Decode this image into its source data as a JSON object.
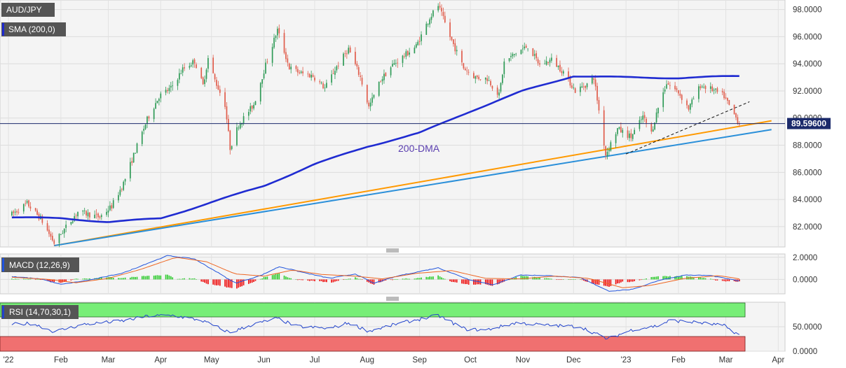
{
  "chart_data": [
    {
      "type": "candlestick",
      "panel": "price",
      "symbol_label": "AUD/JPY",
      "indicator_label": "SMA (200,0)",
      "annotation": "200-DMA",
      "current_price_label": "89.59600",
      "current_price": 89.596,
      "ylim": [
        80.5,
        98.7
      ],
      "y_ticks": [
        "82.0000",
        "84.0000",
        "86.0000",
        "88.0000",
        "90.0000",
        "92.0000",
        "94.0000",
        "96.0000",
        "98.0000"
      ],
      "y_tick_values": [
        82,
        84,
        86,
        88,
        90,
        92,
        94,
        96,
        98
      ],
      "x_labels": [
        "'22",
        "Feb",
        "Mar",
        "Apr",
        "May",
        "Jun",
        "Jul",
        "Aug",
        "Sep",
        "Oct",
        "Nov",
        "Dec",
        "'23",
        "Feb",
        "Mar",
        "Apr"
      ],
      "price_anchors": [
        [
          "2022-01-03",
          82.9
        ],
        [
          "2022-01-12",
          83.7
        ],
        [
          "2022-01-20",
          82.6
        ],
        [
          "2022-01-28",
          80.8
        ],
        [
          "2022-02-03",
          81.8
        ],
        [
          "2022-02-11",
          83.1
        ],
        [
          "2022-02-24",
          82.7
        ],
        [
          "2022-03-03",
          83.5
        ],
        [
          "2022-03-10",
          85.2
        ],
        [
          "2022-03-17",
          87.6
        ],
        [
          "2022-03-24",
          89.9
        ],
        [
          "2022-03-31",
          91.6
        ],
        [
          "2022-04-07",
          92.2
        ],
        [
          "2022-04-14",
          93.6
        ],
        [
          "2022-04-21",
          94.2
        ],
        [
          "2022-04-26",
          92.4
        ],
        [
          "2022-04-29",
          94.4
        ],
        [
          "2022-05-03",
          92.8
        ],
        [
          "2022-05-09",
          91.0
        ],
        [
          "2022-05-12",
          87.8
        ],
        [
          "2022-05-17",
          89.5
        ],
        [
          "2022-05-26",
          91.0
        ],
        [
          "2022-06-02",
          93.9
        ],
        [
          "2022-06-09",
          96.5
        ],
        [
          "2022-06-16",
          93.7
        ],
        [
          "2022-06-23",
          93.3
        ],
        [
          "2022-06-30",
          93.1
        ],
        [
          "2022-07-07",
          92.2
        ],
        [
          "2022-07-14",
          93.8
        ],
        [
          "2022-07-21",
          95.1
        ],
        [
          "2022-07-28",
          93.0
        ],
        [
          "2022-08-02",
          90.8
        ],
        [
          "2022-08-09",
          92.8
        ],
        [
          "2022-08-16",
          93.9
        ],
        [
          "2022-08-23",
          94.6
        ],
        [
          "2022-08-30",
          95.3
        ],
        [
          "2022-09-07",
          97.4
        ],
        [
          "2022-09-12",
          98.3
        ],
        [
          "2022-09-19",
          96.0
        ],
        [
          "2022-09-27",
          93.7
        ],
        [
          "2022-10-04",
          93.0
        ],
        [
          "2022-10-11",
          92.9
        ],
        [
          "2022-10-18",
          91.7
        ],
        [
          "2022-10-21",
          94.1
        ],
        [
          "2022-10-28",
          94.8
        ],
        [
          "2022-11-04",
          95.3
        ],
        [
          "2022-11-11",
          93.9
        ],
        [
          "2022-11-18",
          94.3
        ],
        [
          "2022-11-25",
          93.4
        ],
        [
          "2022-12-02",
          92.0
        ],
        [
          "2022-12-09",
          92.5
        ],
        [
          "2022-12-13",
          93.0
        ],
        [
          "2022-12-20",
          87.3
        ],
        [
          "2022-12-27",
          89.2
        ],
        [
          "2023-01-04",
          88.6
        ],
        [
          "2023-01-11",
          90.1
        ],
        [
          "2023-01-16",
          88.9
        ],
        [
          "2023-01-20",
          90.8
        ],
        [
          "2023-01-25",
          92.6
        ],
        [
          "2023-02-01",
          91.9
        ],
        [
          "2023-02-07",
          90.7
        ],
        [
          "2023-02-14",
          92.4
        ],
        [
          "2023-02-21",
          92.1
        ],
        [
          "2023-02-28",
          91.6
        ],
        [
          "2023-03-03",
          90.9
        ],
        [
          "2023-03-09",
          89.6
        ]
      ],
      "sma200_anchors": [
        [
          "2022-01-03",
          82.7
        ],
        [
          "2022-02-01",
          82.6
        ],
        [
          "2022-03-01",
          82.35
        ],
        [
          "2022-04-01",
          82.6
        ],
        [
          "2022-05-01",
          83.8
        ],
        [
          "2022-06-01",
          85.0
        ],
        [
          "2022-07-01",
          86.6
        ],
        [
          "2022-08-01",
          87.9
        ],
        [
          "2022-09-01",
          88.9
        ],
        [
          "2022-10-01",
          90.5
        ],
        [
          "2022-11-01",
          92.0
        ],
        [
          "2022-12-01",
          93.1
        ],
        [
          "2023-01-01",
          93.0
        ],
        [
          "2023-02-01",
          92.95
        ],
        [
          "2023-03-09",
          93.1
        ]
      ],
      "trendlines": [
        {
          "name": "orange-support",
          "color": "#ff9900",
          "dash": false,
          "start": [
            "2022-01-28",
            80.6
          ],
          "end": [
            "2023-03-28",
            89.8
          ]
        },
        {
          "name": "blue-support",
          "color": "#2a8fd9",
          "dash": false,
          "start": [
            "2022-01-28",
            80.6
          ],
          "end": [
            "2023-03-28",
            89.15
          ]
        },
        {
          "name": "dashed-support",
          "color": "#111111",
          "dash": true,
          "start": [
            "2023-01-01",
            87.35
          ],
          "end": [
            "2023-03-15",
            91.2
          ]
        }
      ],
      "colors": {
        "up": "#2e9a56",
        "down": "#e05c4b",
        "sma": "#1f2bd1",
        "price_line": "#1b2a6b"
      }
    },
    {
      "type": "histogram+line",
      "panel": "macd",
      "label": "MACD (12,26,9)",
      "ylim": [
        -1.3,
        2.3
      ],
      "y_ticks": [
        "2.0000",
        "0.0000"
      ],
      "y_tick_values": [
        2,
        0
      ],
      "macd_anchors": [
        [
          "2022-01-03",
          0.25
        ],
        [
          "2022-01-20",
          0.05
        ],
        [
          "2022-02-01",
          -0.45
        ],
        [
          "2022-02-20",
          0.0
        ],
        [
          "2022-03-10",
          0.6
        ],
        [
          "2022-03-25",
          1.5
        ],
        [
          "2022-04-05",
          2.15
        ],
        [
          "2022-04-21",
          1.85
        ],
        [
          "2022-05-05",
          0.6
        ],
        [
          "2022-05-15",
          -0.35
        ],
        [
          "2022-05-30",
          0.35
        ],
        [
          "2022-06-10",
          1.15
        ],
        [
          "2022-06-25",
          0.6
        ],
        [
          "2022-07-10",
          0.1
        ],
        [
          "2022-07-25",
          0.5
        ],
        [
          "2022-08-05",
          -0.35
        ],
        [
          "2022-08-20",
          0.35
        ],
        [
          "2022-09-12",
          1.05
        ],
        [
          "2022-09-30",
          0.0
        ],
        [
          "2022-10-15",
          -0.5
        ],
        [
          "2022-10-30",
          0.4
        ],
        [
          "2022-11-15",
          0.35
        ],
        [
          "2022-12-05",
          0.15
        ],
        [
          "2022-12-22",
          -1.05
        ],
        [
          "2023-01-05",
          -0.9
        ],
        [
          "2023-01-20",
          -0.1
        ],
        [
          "2023-02-05",
          0.4
        ],
        [
          "2023-02-20",
          0.35
        ],
        [
          "2023-03-09",
          -0.15
        ]
      ],
      "signal_anchors": [
        [
          "2022-01-03",
          0.2
        ],
        [
          "2022-01-25",
          0.0
        ],
        [
          "2022-02-10",
          -0.3
        ],
        [
          "2022-03-01",
          0.1
        ],
        [
          "2022-03-20",
          0.9
        ],
        [
          "2022-04-10",
          2.0
        ],
        [
          "2022-04-28",
          1.6
        ],
        [
          "2022-05-15",
          0.5
        ],
        [
          "2022-06-01",
          0.3
        ],
        [
          "2022-06-18",
          0.85
        ],
        [
          "2022-07-05",
          0.45
        ],
        [
          "2022-07-25",
          0.3
        ],
        [
          "2022-08-10",
          0.05
        ],
        [
          "2022-08-30",
          0.55
        ],
        [
          "2022-09-20",
          0.8
        ],
        [
          "2022-10-10",
          0.1
        ],
        [
          "2022-10-30",
          0.05
        ],
        [
          "2022-11-20",
          0.3
        ],
        [
          "2022-12-10",
          0.1
        ],
        [
          "2022-12-30",
          -0.75
        ],
        [
          "2023-01-15",
          -0.55
        ],
        [
          "2023-02-05",
          0.1
        ],
        [
          "2023-02-25",
          0.35
        ],
        [
          "2023-03-09",
          0.05
        ]
      ],
      "colors": {
        "hist_up": "#33cc33",
        "hist_down": "#ee1111",
        "macd": "#2255dd",
        "signal": "#ee6622"
      }
    },
    {
      "type": "line",
      "panel": "rsi",
      "label": "RSI (14,70,30,1)",
      "ylim": [
        0,
        100
      ],
      "overbought": 70,
      "oversold": 30,
      "y_ticks": [
        "50.0000",
        "0.0000"
      ],
      "y_tick_values": [
        50,
        0
      ],
      "rsi_anchors": [
        [
          "2022-01-03",
          55
        ],
        [
          "2022-01-15",
          57
        ],
        [
          "2022-01-28",
          40
        ],
        [
          "2022-02-15",
          55
        ],
        [
          "2022-03-10",
          62
        ],
        [
          "2022-03-25",
          72
        ],
        [
          "2022-04-08",
          73
        ],
        [
          "2022-04-25",
          63
        ],
        [
          "2022-05-12",
          38
        ],
        [
          "2022-05-25",
          54
        ],
        [
          "2022-06-09",
          67
        ],
        [
          "2022-06-20",
          51
        ],
        [
          "2022-07-10",
          46
        ],
        [
          "2022-07-21",
          58
        ],
        [
          "2022-08-02",
          41
        ],
        [
          "2022-08-20",
          57
        ],
        [
          "2022-09-12",
          73
        ],
        [
          "2022-09-28",
          45
        ],
        [
          "2022-10-10",
          43
        ],
        [
          "2022-10-28",
          58
        ],
        [
          "2022-11-15",
          53
        ],
        [
          "2022-12-05",
          50
        ],
        [
          "2022-12-21",
          25
        ],
        [
          "2023-01-05",
          44
        ],
        [
          "2023-01-20",
          52
        ],
        [
          "2023-01-27",
          63
        ],
        [
          "2023-02-14",
          58
        ],
        [
          "2023-02-28",
          52
        ],
        [
          "2023-03-09",
          33
        ]
      ],
      "colors": {
        "line": "#2244cc",
        "overbought_zone": "#77ee77",
        "oversold_zone": "#f07070"
      }
    }
  ]
}
